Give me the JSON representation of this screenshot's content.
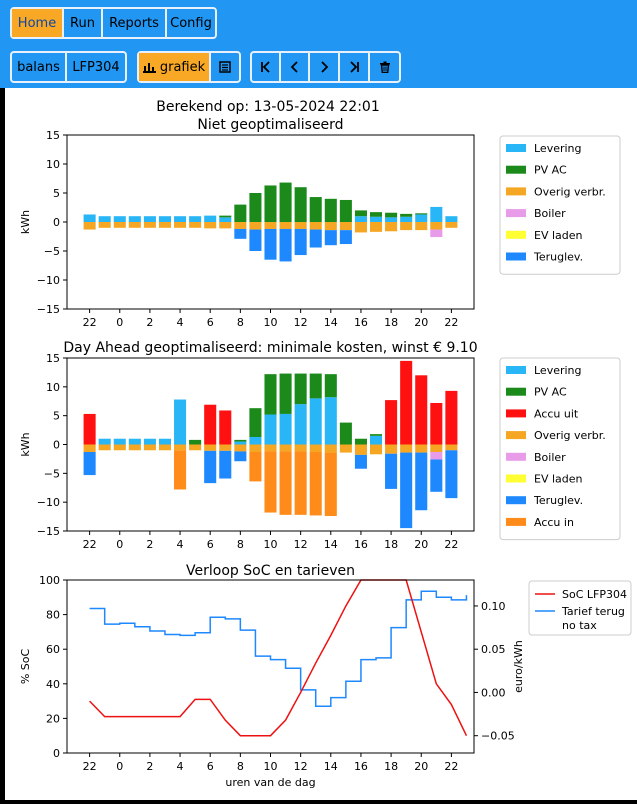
{
  "nav": {
    "home": "Home",
    "run": "Run",
    "reports": "Reports",
    "config": "Config"
  },
  "toolbar": {
    "balans": "balans",
    "battery": "LFP304",
    "grafiek": "grafiek"
  },
  "header": {
    "computed": "Berekend op: 13-05-2024 22:01"
  },
  "colors": {
    "levering": "#29b6f6",
    "pvac": "#1b8a1b",
    "overig": "#f5a623",
    "boiler": "#e79be8",
    "ev": "#ffff33",
    "teruglev": "#1e88ff",
    "accu_uit": "#ff1111",
    "accu_in": "#ff8c1a",
    "soc": "#ee1111",
    "tarief": "#1e88ff"
  },
  "chart_data": [
    {
      "type": "bar",
      "title": "Niet geoptimaliseerd",
      "ylabel": "kWh",
      "ylim": [
        -15,
        15
      ],
      "yticks": [
        -15,
        -10,
        -5,
        0,
        5,
        10,
        15
      ],
      "xticks": [
        "22",
        "0",
        "2",
        "4",
        "6",
        "8",
        "10",
        "12",
        "14",
        "16",
        "18",
        "20",
        "22"
      ],
      "legend_labels": [
        "Levering",
        "PV AC",
        "Overig verbr.",
        "Boiler",
        "EV laden",
        "Teruglev."
      ],
      "series_pos": [
        {
          "name": "Levering",
          "values": [
            1.3,
            1.0,
            1.0,
            1.0,
            1.0,
            1.0,
            1.0,
            1.0,
            1.1,
            0.8,
            0,
            0,
            0,
            0,
            0,
            0,
            0,
            0,
            1.0,
            0.9,
            0.8,
            0.9,
            1.3,
            2.6,
            1.0
          ]
        },
        {
          "name": "PV AC",
          "values": [
            0,
            0,
            0,
            0,
            0,
            0,
            0,
            0,
            0,
            0.3,
            3.0,
            5.0,
            6.3,
            6.8,
            6.0,
            4.3,
            4.0,
            3.8,
            1.0,
            0.8,
            0.8,
            0.5,
            0.2,
            0,
            0
          ]
        }
      ],
      "series_neg": [
        {
          "name": "Overig verbr.",
          "values": [
            -1.3,
            -1.0,
            -1.0,
            -1.0,
            -1.0,
            -1.0,
            -1.0,
            -1.0,
            -1.1,
            -1.1,
            -1.2,
            -1.3,
            -1.2,
            -1.2,
            -1.2,
            -1.3,
            -1.4,
            -1.4,
            -1.8,
            -1.7,
            -1.6,
            -1.4,
            -1.4,
            -1.3,
            -1.0
          ]
        },
        {
          "name": "Boiler",
          "values": [
            0,
            0,
            0,
            0,
            0,
            0,
            0,
            0,
            0,
            0,
            0,
            0,
            0,
            0,
            0,
            0,
            0,
            0,
            0,
            0,
            0,
            0,
            0,
            -1.3,
            0
          ]
        },
        {
          "name": "Teruglev.",
          "values": [
            0,
            0,
            0,
            0,
            0,
            0,
            0,
            0,
            0,
            0,
            -1.7,
            -3.7,
            -5.3,
            -5.6,
            -4.5,
            -3.1,
            -2.6,
            -2.4,
            0,
            0,
            0,
            0,
            0,
            0,
            0
          ]
        }
      ]
    },
    {
      "type": "bar",
      "title": "Day Ahead geoptimaliseerd: minimale kosten, winst € 9.10",
      "ylabel": "kWh",
      "ylim": [
        -15,
        15
      ],
      "yticks": [
        -15,
        -10,
        -5,
        0,
        5,
        10,
        15
      ],
      "xticks": [
        "22",
        "0",
        "2",
        "4",
        "6",
        "8",
        "10",
        "12",
        "14",
        "16",
        "18",
        "20",
        "22"
      ],
      "legend_labels": [
        "Levering",
        "PV AC",
        "Accu uit",
        "Overig verbr.",
        "Boiler",
        "EV laden",
        "Teruglev.",
        "Accu in"
      ],
      "series_pos": [
        {
          "name": "Levering",
          "values": [
            0,
            1.0,
            1.0,
            1.0,
            1.0,
            1.0,
            7.8,
            0,
            0,
            0,
            0.5,
            1.3,
            5.2,
            5.3,
            7.0,
            8.0,
            8.2,
            0,
            0,
            1.5,
            0,
            0,
            0,
            0,
            0
          ]
        },
        {
          "name": "PV AC",
          "values": [
            0,
            0,
            0,
            0,
            0,
            0,
            0,
            0.8,
            0,
            0,
            0.3,
            5.0,
            7.0,
            7.0,
            5.3,
            4.3,
            4.0,
            3.8,
            1.0,
            0.3,
            0,
            0,
            0,
            0,
            0
          ]
        },
        {
          "name": "Accu uit",
          "values": [
            5.3,
            0,
            0,
            0,
            0,
            0,
            0,
            0,
            6.9,
            5.9,
            0,
            0,
            0,
            0,
            0,
            0,
            0,
            0,
            0,
            0,
            7.7,
            14.5,
            12.0,
            7.2,
            9.3
          ]
        }
      ],
      "series_neg": [
        {
          "name": "Overig verbr.",
          "values": [
            -1.3,
            -1.0,
            -1.0,
            -1.0,
            -1.0,
            -1.0,
            -1.0,
            -1.0,
            -1.1,
            -1.1,
            -1.2,
            -1.3,
            -1.2,
            -1.2,
            -1.2,
            -1.3,
            -1.4,
            -1.4,
            -1.8,
            -1.7,
            -1.6,
            -1.4,
            -1.4,
            -1.3,
            -1.0
          ]
        },
        {
          "name": "Boiler",
          "values": [
            0,
            0,
            0,
            0,
            0,
            0,
            0,
            0,
            0,
            0,
            0,
            0,
            0,
            0,
            0,
            0,
            0,
            0,
            0,
            0,
            0,
            0,
            0,
            -1.3,
            0
          ]
        },
        {
          "name": "Teruglev.",
          "values": [
            -4.0,
            0,
            0,
            0,
            0,
            0,
            0,
            0,
            -5.6,
            -4.8,
            -1.7,
            0,
            0,
            0,
            0,
            0,
            0,
            0,
            -2.4,
            0,
            -6.1,
            -13.1,
            -10.0,
            -5.6,
            -8.3
          ]
        },
        {
          "name": "Accu in",
          "values": [
            0,
            0,
            0,
            0,
            0,
            0,
            -6.8,
            0,
            0,
            0,
            0,
            -5.1,
            -10.6,
            -11.0,
            -11.0,
            -11.0,
            -11.0,
            0,
            0,
            0,
            0,
            0,
            0,
            0,
            0
          ]
        }
      ]
    },
    {
      "type": "line",
      "title": "Verloop SoC en tarieven",
      "xlabel": "uren van de dag",
      "ylabel": "% SoC",
      "ylabel2": "euro/kWh",
      "ylim": [
        0,
        100
      ],
      "ylim2": [
        -0.07,
        0.13
      ],
      "yticks": [
        "0",
        "20",
        "40",
        "60",
        "80",
        "100"
      ],
      "yticks2": [
        "-0.05",
        "0.00",
        "0.05",
        "0.10"
      ],
      "xticks": [
        "22",
        "0",
        "2",
        "4",
        "6",
        "8",
        "10",
        "12",
        "14",
        "16",
        "18",
        "20",
        "22"
      ],
      "legend": [
        {
          "name": "SoC LFP304"
        },
        {
          "name": "Tarief terug",
          "name2": "no tax"
        }
      ],
      "x_soc": [
        -1,
        0,
        1,
        2,
        3,
        4,
        5,
        6,
        7,
        8,
        9,
        10,
        11,
        12,
        13,
        14,
        15,
        16,
        17,
        18,
        19,
        20,
        21,
        22,
        23,
        24
      ],
      "soc": [
        30,
        21,
        21,
        21,
        21,
        21,
        21,
        31,
        31,
        19,
        10,
        10,
        10,
        19,
        35,
        52,
        68,
        85,
        100,
        100,
        100,
        100,
        70,
        40,
        28,
        10
      ],
      "x_tarief": [
        -1,
        0,
        1,
        2,
        3,
        4,
        5,
        6,
        7,
        8,
        9,
        10,
        11,
        12,
        13,
        14,
        15,
        16,
        17,
        18,
        19,
        20,
        21,
        22,
        23,
        24
      ],
      "tarief": [
        0.097,
        0.079,
        0.08,
        0.076,
        0.071,
        0.067,
        0.066,
        0.069,
        0.087,
        0.085,
        0.072,
        0.042,
        0.038,
        0.028,
        0.003,
        -0.016,
        -0.006,
        0.013,
        0.038,
        0.04,
        0.075,
        0.107,
        0.117,
        0.11,
        0.107,
        0.112
      ]
    }
  ]
}
